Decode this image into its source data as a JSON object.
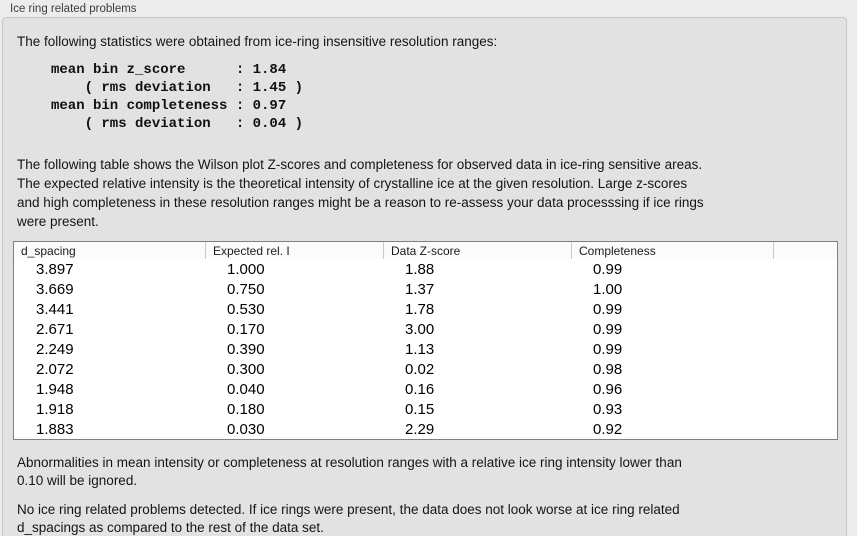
{
  "panel": {
    "title": "Ice ring related problems"
  },
  "intro": "The following statistics were obtained from ice-ring insensitive resolution ranges:",
  "stats_block": "mean bin z_score      : 1.84\n    ( rms deviation   : 1.45 )\nmean bin completeness : 0.97\n    ( rms deviation   : 0.04 )",
  "statistics": {
    "mean_bin_z_score": "1.84",
    "z_score_rms_deviation": "1.45",
    "mean_bin_completeness": "0.97",
    "completeness_rms_deviation": "0.04"
  },
  "description": "The following table shows the Wilson plot Z-scores and completeness for observed data in ice-ring sensitive areas.\nThe expected relative intensity is the theoretical intensity of crystalline ice at the given resolution. Large z-scores\nand high completeness in these resolution ranges might be a reason to re-assess your data processsing if ice rings\nwere present.",
  "table": {
    "columns": [
      "d_spacing",
      "Expected rel. I",
      "Data Z-score",
      "Completeness",
      ""
    ],
    "rows": [
      [
        "3.897",
        "1.000",
        "1.88",
        "0.99"
      ],
      [
        "3.669",
        "0.750",
        "1.37",
        "1.00"
      ],
      [
        "3.441",
        "0.530",
        "1.78",
        "0.99"
      ],
      [
        "2.671",
        "0.170",
        "3.00",
        "0.99"
      ],
      [
        "2.249",
        "0.390",
        "1.13",
        "0.99"
      ],
      [
        "2.072",
        "0.300",
        "0.02",
        "0.98"
      ],
      [
        "1.948",
        "0.040",
        "0.16",
        "0.96"
      ],
      [
        "1.918",
        "0.180",
        "0.15",
        "0.93"
      ],
      [
        "1.883",
        "0.030",
        "2.29",
        "0.92"
      ]
    ]
  },
  "note_ignore": "Abnormalities in mean intensity or completeness at resolution ranges with a relative ice ring intensity lower than\n0.10 will be ignored.",
  "conclusion": "No ice ring related problems detected. If ice rings were present, the data does not look worse at ice ring related\nd_spacings as compared to the rest of the data set."
}
